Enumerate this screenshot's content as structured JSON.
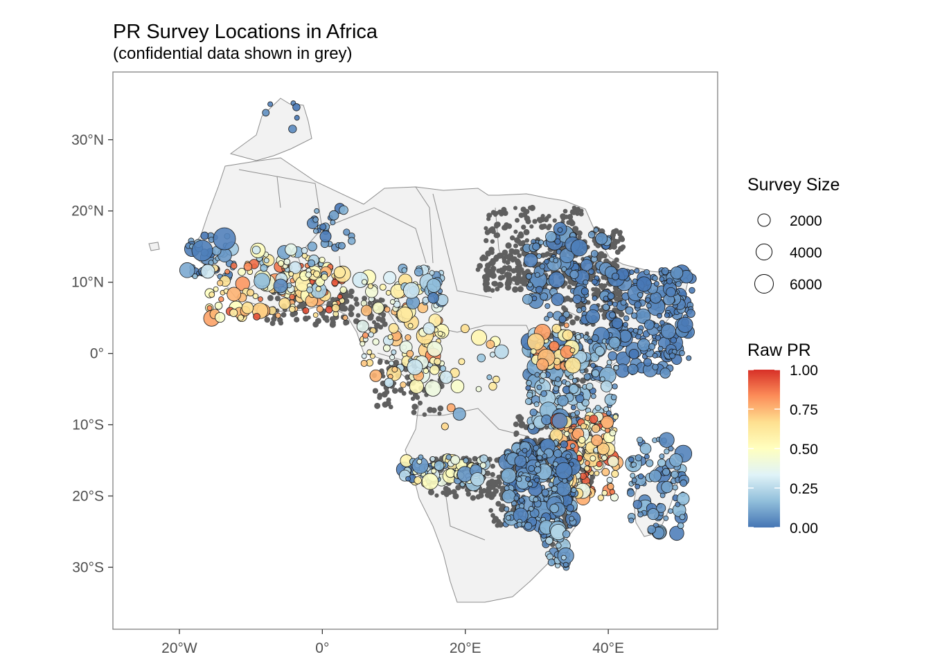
{
  "title": "PR Survey Locations in Africa",
  "subtitle": "(confidential data shown in grey)",
  "axes": {
    "x_ticks": [
      {
        "label": "20°W",
        "lon": -20
      },
      {
        "label": "0°",
        "lon": 0
      },
      {
        "label": "20°E",
        "lon": 20
      },
      {
        "label": "40°E",
        "lon": 40
      }
    ],
    "y_ticks": [
      {
        "label": "30°N",
        "lat": 30
      },
      {
        "label": "20°N",
        "lat": 20
      },
      {
        "label": "10°N",
        "lat": 10
      },
      {
        "label": "0°",
        "lat": 0
      },
      {
        "label": "10°S",
        "lat": -10
      },
      {
        "label": "20°S",
        "lat": -20
      },
      {
        "label": "30°S",
        "lat": -30
      }
    ],
    "lon_range": [
      -29.3,
      55.3
    ],
    "lat_range": [
      -38.7,
      39.5
    ]
  },
  "legend_size": {
    "title": "Survey Size",
    "entries": [
      {
        "label": "2000",
        "value": 2000
      },
      {
        "label": "4000",
        "value": 4000
      },
      {
        "label": "6000",
        "value": 6000
      }
    ]
  },
  "legend_color": {
    "title": "Raw PR",
    "ticks": [
      {
        "label": "1.00",
        "value": 1.0
      },
      {
        "label": "0.75",
        "value": 0.75
      },
      {
        "label": "0.50",
        "value": 0.5
      },
      {
        "label": "0.25",
        "value": 0.25
      },
      {
        "label": "0.00",
        "value": 0.0
      }
    ],
    "stops": [
      "#4575b4",
      "#91bfdb",
      "#e0f3f8",
      "#ffffbf",
      "#fee090",
      "#fc8d59",
      "#d73027"
    ]
  },
  "colors": {
    "land": "#f2f2f2",
    "border": "#8c8c8c",
    "confidential": "#5f5f5f",
    "panel_border": "#7f7f7f",
    "axis_text": "#4d4d4d"
  }
}
